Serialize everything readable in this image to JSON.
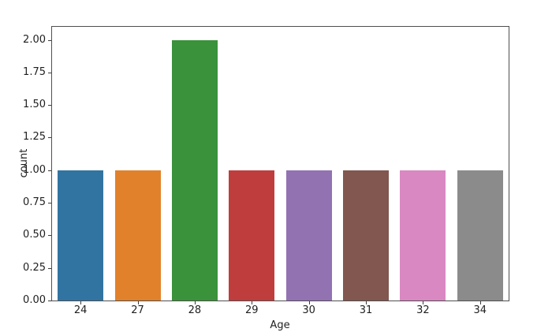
{
  "chart_data": {
    "type": "bar",
    "title": "",
    "xlabel": "Age",
    "ylabel": "count",
    "categories": [
      "24",
      "27",
      "28",
      "29",
      "30",
      "31",
      "32",
      "34"
    ],
    "values": [
      1,
      1,
      2,
      1,
      1,
      1,
      1,
      1
    ],
    "bar_colors": [
      "#3274a1",
      "#e1812c",
      "#3a923a",
      "#c03d3e",
      "#9372b2",
      "#815750",
      "#d988c2",
      "#8b8b8b"
    ],
    "ylim": [
      0,
      2.1
    ],
    "yticks": [
      {
        "value": 0.0,
        "label": "0.00"
      },
      {
        "value": 0.25,
        "label": "0.25"
      },
      {
        "value": 0.5,
        "label": "0.50"
      },
      {
        "value": 0.75,
        "label": "0.75"
      },
      {
        "value": 1.0,
        "label": "1.00"
      },
      {
        "value": 1.25,
        "label": "1.25"
      },
      {
        "value": 1.5,
        "label": "1.50"
      },
      {
        "value": 1.75,
        "label": "1.75"
      },
      {
        "value": 2.0,
        "label": "2.00"
      }
    ],
    "grid": false,
    "legend": null
  },
  "style": {
    "spine_color": "#4f4f4f",
    "tick_color": "#3a3a3a",
    "text_color": "#1f1f1f",
    "background": "#ffffff"
  }
}
